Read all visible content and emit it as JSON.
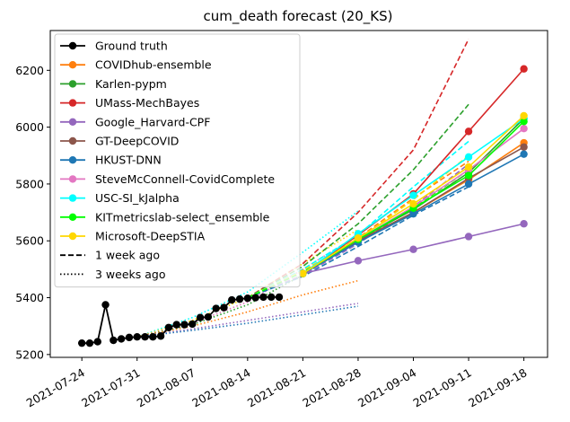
{
  "chart_data": {
    "type": "line",
    "title": "cum_death forecast (20_KS)",
    "xlabel": "",
    "ylabel": "",
    "x_ticks": [
      "2021-07-24",
      "2021-07-31",
      "2021-08-07",
      "2021-08-14",
      "2021-08-21",
      "2021-08-28",
      "2021-09-04",
      "2021-09-11",
      "2021-09-18"
    ],
    "y_ticks": [
      5200,
      5400,
      5600,
      5800,
      6000,
      6200
    ],
    "xlim": [
      "2021-07-20",
      "2021-09-21"
    ],
    "ylim": [
      5190,
      6340
    ],
    "legend_position": "top-left",
    "ground_truth": {
      "name": "Ground truth",
      "color": "#000000",
      "points": [
        [
          "2021-07-24",
          5240
        ],
        [
          "2021-07-25",
          5240
        ],
        [
          "2021-07-26",
          5245
        ],
        [
          "2021-07-27",
          5375
        ],
        [
          "2021-07-28",
          5250
        ],
        [
          "2021-07-29",
          5255
        ],
        [
          "2021-07-30",
          5260
        ],
        [
          "2021-07-31",
          5262
        ],
        [
          "2021-08-01",
          5262
        ],
        [
          "2021-08-02",
          5262
        ],
        [
          "2021-08-03",
          5265
        ],
        [
          "2021-08-04",
          5295
        ],
        [
          "2021-08-05",
          5305
        ],
        [
          "2021-08-06",
          5305
        ],
        [
          "2021-08-07",
          5307
        ],
        [
          "2021-08-08",
          5330
        ],
        [
          "2021-08-09",
          5332
        ],
        [
          "2021-08-10",
          5362
        ],
        [
          "2021-08-11",
          5365
        ],
        [
          "2021-08-12",
          5392
        ],
        [
          "2021-08-13",
          5395
        ],
        [
          "2021-08-14",
          5398
        ],
        [
          "2021-08-15",
          5400
        ],
        [
          "2021-08-16",
          5402
        ],
        [
          "2021-08-17",
          5402
        ],
        [
          "2021-08-18",
          5402
        ]
      ]
    },
    "forecast_dates": [
      "2021-08-21",
      "2021-08-28",
      "2021-09-04",
      "2021-09-11",
      "2021-09-18"
    ],
    "series": [
      {
        "name": "COVIDhub-ensemble",
        "color": "#ff7f0e",
        "values": [
          5485,
          5600,
          5700,
          5815,
          5945
        ]
      },
      {
        "name": "Karlen-pypm",
        "color": "#2ca02c",
        "values": [
          5485,
          5605,
          5710,
          5840,
          6030
        ]
      },
      {
        "name": "UMass-MechBayes",
        "color": "#d62728",
        "values": [
          5485,
          5620,
          5765,
          5985,
          6205
        ]
      },
      {
        "name": "Google_Harvard-CPF",
        "color": "#9467bd",
        "values": [
          5485,
          5530,
          5570,
          5615,
          5660
        ]
      },
      {
        "name": "GT-DeepCOVID",
        "color": "#8c564b",
        "values": [
          5485,
          5600,
          5700,
          5820,
          5930
        ]
      },
      {
        "name": "HKUST-DNN",
        "color": "#1f77b4",
        "values": [
          5485,
          5595,
          5695,
          5800,
          5905
        ]
      },
      {
        "name": "SteveMcConnell-CovidComplete",
        "color": "#e377c2",
        "values": [
          5485,
          5605,
          5720,
          5850,
          5995
        ]
      },
      {
        "name": "USC-SI_kJalpha",
        "color": "#00ffff",
        "values": [
          5485,
          5625,
          5760,
          5895,
          6030
        ]
      },
      {
        "name": "KITmetricslab-select_ensemble",
        "color": "#00ff00",
        "values": [
          5485,
          5605,
          5715,
          5830,
          6020
        ]
      },
      {
        "name": "Microsoft-DeepSTIA",
        "color": "#ffd700",
        "values": [
          5485,
          5610,
          5730,
          5860,
          6040
        ]
      }
    ],
    "week_ago_forecasts": {
      "style_name": "1 week ago",
      "dates": [
        "2021-08-14",
        "2021-08-21",
        "2021-08-28",
        "2021-09-04",
        "2021-09-11"
      ],
      "lines": [
        {
          "color": "#d62728",
          "values": [
            5400,
            5520,
            5700,
            5920,
            6310
          ]
        },
        {
          "color": "#2ca02c",
          "values": [
            5400,
            5510,
            5660,
            5850,
            6080
          ]
        },
        {
          "color": "#ff7f0e",
          "values": [
            5400,
            5490,
            5610,
            5750,
            5880
          ]
        },
        {
          "color": "#9467bd",
          "values": [
            5400,
            5480,
            5590,
            5720,
            5870
          ]
        },
        {
          "color": "#1f77b4",
          "values": [
            5400,
            5475,
            5580,
            5690,
            5790
          ]
        },
        {
          "color": "#00ffff",
          "values": [
            5400,
            5500,
            5620,
            5790,
            5950
          ]
        },
        {
          "color": "#ffd700",
          "values": [
            5400,
            5495,
            5605,
            5745,
            5900
          ]
        },
        {
          "color": "#00ff00",
          "values": [
            5400,
            5490,
            5600,
            5715,
            5850
          ]
        }
      ]
    },
    "three_weeks_ago_forecasts": {
      "style_name": "3 weeks ago",
      "dates": [
        "2021-07-31",
        "2021-08-07",
        "2021-08-14",
        "2021-08-21",
        "2021-08-28"
      ],
      "lines": [
        {
          "color": "#00ffff",
          "values": [
            5262,
            5330,
            5420,
            5560,
            5705
          ]
        },
        {
          "color": "#ffd700",
          "values": [
            5262,
            5320,
            5400,
            5520,
            5640
          ]
        },
        {
          "color": "#e377c2",
          "values": [
            5262,
            5310,
            5385,
            5500,
            5620
          ]
        },
        {
          "color": "#2ca02c",
          "values": [
            5262,
            5305,
            5375,
            5480,
            5600
          ]
        },
        {
          "color": "#ff7f0e",
          "values": [
            5262,
            5300,
            5350,
            5410,
            5460
          ]
        },
        {
          "color": "#9467bd",
          "values": [
            5262,
            5290,
            5320,
            5350,
            5380
          ]
        },
        {
          "color": "#1f77b4",
          "values": [
            5262,
            5285,
            5310,
            5340,
            5370
          ]
        }
      ]
    }
  }
}
